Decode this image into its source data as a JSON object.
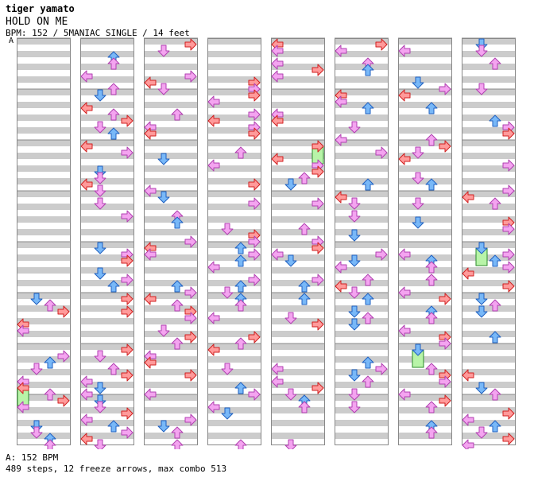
{
  "header": {
    "artist": "tiger yamato",
    "title": "HOLD ON ME",
    "info": "BPM: 152 / 5MANIAC SINGLE / 14 feet",
    "bpm_marker": "A"
  },
  "colors": {
    "stripe_gray": "#cccccc",
    "left_right_arrow": "#ff9a9a",
    "down_up_arrow": "#78b8f8",
    "quarter_arrow": "#f4a4f0",
    "freeze_arrow": "#b8f4a8",
    "border": "#888888"
  },
  "chart": {
    "columns": 8,
    "measures_per_column": 8,
    "arrow_icons": [
      "arrow-left-icon",
      "arrow-down-icon",
      "arrow-up-icon",
      "arrow-right-icon"
    ]
  },
  "footer": {
    "bpm_legend": "A: 152 BPM",
    "stats": "489 steps, 12 freeze arrows, max combo 513"
  }
}
